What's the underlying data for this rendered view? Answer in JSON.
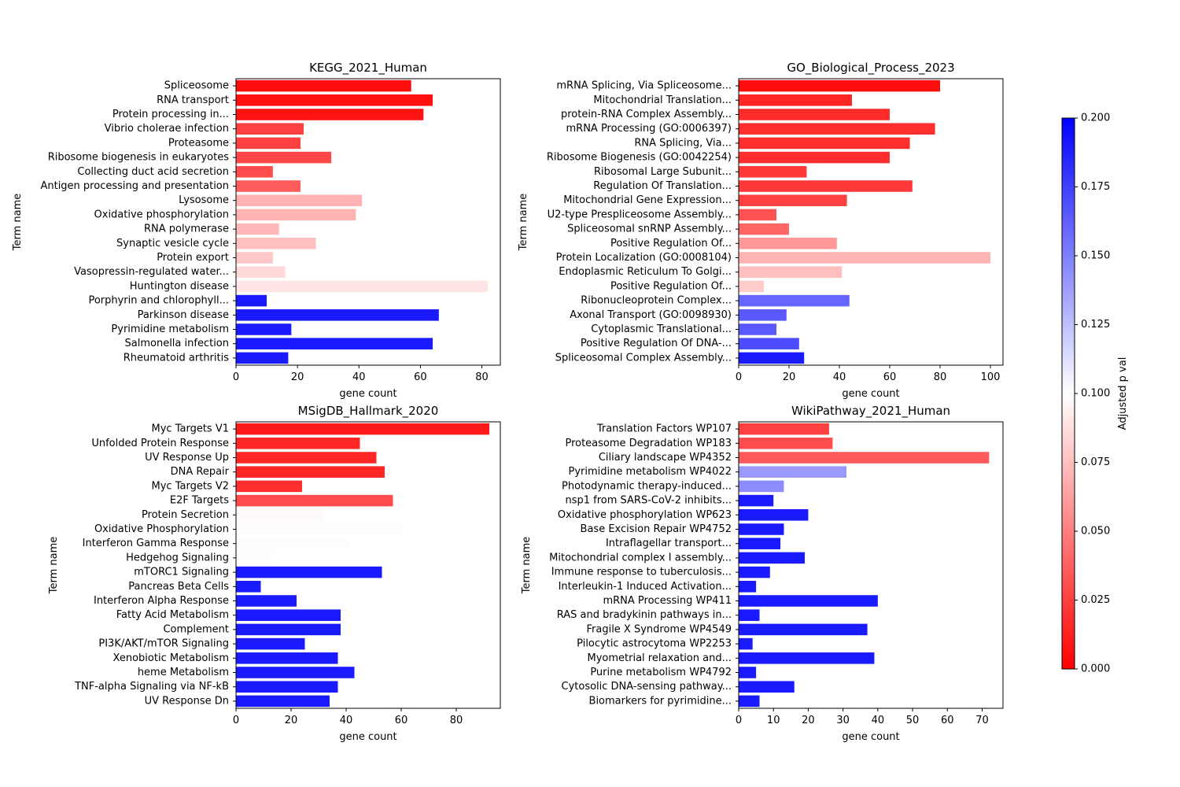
{
  "colorbar": {
    "label": "Adjusted p val",
    "min": 0,
    "max": 0.2,
    "ticks": [
      "0.000",
      "0.025",
      "0.050",
      "0.075",
      "0.100",
      "0.125",
      "0.150",
      "0.175",
      "0.200"
    ],
    "colors": {
      "low": "#ff0000",
      "mid": "#ffffff",
      "high": "#0000ff"
    }
  },
  "chart_data": [
    {
      "type": "bar",
      "orientation": "horizontal",
      "title": "KEGG_2021_Human",
      "xlabel": "gene count",
      "ylabel": "Term name",
      "xlim": [
        0,
        86
      ],
      "xticks": [
        0,
        20,
        40,
        60,
        80
      ],
      "categories": [
        "Spliceosome",
        "RNA transport",
        "Protein processing in...",
        "Vibrio cholerae infection",
        "Proteasome",
        "Ribosome biogenesis in eukaryotes",
        "Collecting duct acid secretion",
        "Antigen processing and presentation",
        "Lysosome",
        "Oxidative phosphorylation",
        "RNA polymerase",
        "Synaptic vesicle cycle",
        "Protein export",
        "Vasopressin-regulated water...",
        "Huntington disease",
        "Porphyrin and chlorophyll...",
        "Parkinson disease",
        "Pyrimidine metabolism",
        "Salmonella infection",
        "Rheumatoid arthritis"
      ],
      "values": [
        57,
        64,
        61,
        22,
        21,
        31,
        12,
        21,
        41,
        39,
        14,
        26,
        12,
        16,
        82,
        10,
        66,
        18,
        64,
        17
      ],
      "pvals": [
        0.005,
        0.006,
        0.007,
        0.025,
        0.025,
        0.028,
        0.03,
        0.036,
        0.07,
        0.07,
        0.072,
        0.075,
        0.078,
        0.085,
        0.09,
        0.19,
        0.19,
        0.19,
        0.19,
        0.19
      ]
    },
    {
      "type": "bar",
      "orientation": "horizontal",
      "title": "GO_Biological_Process_2023",
      "xlabel": "gene count",
      "ylabel": "Term name",
      "xlim": [
        0,
        105
      ],
      "xticks": [
        0,
        20,
        40,
        60,
        80,
        100
      ],
      "categories": [
        "mRNA Splicing, Via Spliceosome...",
        "Mitochondrial Translation...",
        "protein-RNA Complex Assembly...",
        "mRNA Processing (GO:0006397)",
        "RNA Splicing, Via...",
        "Ribosome Biogenesis (GO:0042254)",
        "Ribosomal Large Subunit...",
        "Regulation Of Translation...",
        "Mitochondrial Gene Expression...",
        "U2-type Prespliceosome Assembly...",
        "Spliceosomal snRNP Assembly...",
        "Positive Regulation Of...",
        "Protein Localization (GO:0008104)",
        "Endoplasmic Reticulum To Golgi...",
        "Positive Regulation Of...",
        "Ribonucleoprotein Complex...",
        "Axonal Transport (GO:0098930)",
        "Cytoplasmic Translational...",
        "Positive Regulation Of DNA-...",
        "Spliceosomal Complex Assembly..."
      ],
      "values": [
        80,
        45,
        60,
        78,
        68,
        60,
        27,
        69,
        43,
        15,
        20,
        39,
        100,
        41,
        10,
        44,
        19,
        15,
        24,
        26
      ],
      "pvals": [
        0.005,
        0.015,
        0.017,
        0.018,
        0.018,
        0.018,
        0.022,
        0.022,
        0.025,
        0.032,
        0.04,
        0.06,
        0.07,
        0.075,
        0.08,
        0.16,
        0.165,
        0.165,
        0.17,
        0.19
      ]
    },
    {
      "type": "bar",
      "orientation": "horizontal",
      "title": "MSigDB_Hallmark_2020",
      "xlabel": "gene count",
      "ylabel": "Term name",
      "xlim": [
        0,
        96
      ],
      "xticks": [
        0,
        20,
        40,
        60,
        80
      ],
      "categories": [
        "Myc Targets V1",
        "Unfolded Protein Response",
        "UV Response Up",
        "DNA Repair",
        "Myc Targets V2",
        "E2F Targets",
        "Protein Secretion",
        "Oxidative Phosphorylation",
        "Interferon Gamma Response",
        "Hedgehog Signaling",
        "mTORC1 Signaling",
        "Pancreas Beta Cells",
        "Interferon Alpha Response",
        "Fatty Acid Metabolism",
        "Complement",
        "PI3K/AKT/mTOR Signaling",
        "Xenobiotic Metabolism",
        "heme Metabolism",
        "TNF-alpha Signaling via NF-kB",
        "UV Response Dn"
      ],
      "values": [
        92,
        45,
        51,
        54,
        24,
        57,
        32,
        61,
        41,
        13,
        53,
        9,
        22,
        38,
        38,
        25,
        37,
        43,
        37,
        34
      ],
      "pvals": [
        0.01,
        0.015,
        0.015,
        0.015,
        0.018,
        0.03,
        0.098,
        0.099,
        0.099,
        0.099,
        0.19,
        0.19,
        0.19,
        0.19,
        0.19,
        0.19,
        0.19,
        0.19,
        0.19,
        0.19
      ]
    },
    {
      "type": "bar",
      "orientation": "horizontal",
      "title": "WikiPathway_2021_Human",
      "xlabel": "gene count",
      "ylabel": "Term name",
      "xlim": [
        0,
        76
      ],
      "xticks": [
        0,
        10,
        20,
        30,
        40,
        50,
        60,
        70
      ],
      "categories": [
        "Translation Factors WP107",
        "Proteasome Degradation WP183",
        "Ciliary landscape WP4352",
        "Pyrimidine metabolism WP4022",
        "Photodynamic therapy-induced...",
        "nsp1 from SARS-CoV-2 inhibits...",
        "Oxidative phosphorylation WP623",
        "Base Excision Repair WP4752",
        "Intraflagellar transport...",
        "Mitochondrial complex I assembly...",
        "Immune response to tuberculosis...",
        "Interleukin-1 Induced Activation...",
        "mRNA Processing WP411",
        "RAS and bradykinin pathways in...",
        "Fragile X Syndrome WP4549",
        "Pilocytic astrocytoma WP2253",
        "Myometrial relaxation and...",
        "Purine metabolism WP4792",
        "Cytosolic DNA-sensing pathway...",
        "Biomarkers for pyrimidine..."
      ],
      "values": [
        26,
        27,
        72,
        31,
        13,
        10,
        20,
        13,
        12,
        19,
        9,
        5,
        40,
        6,
        37,
        4,
        39,
        5,
        16,
        6
      ],
      "pvals": [
        0.025,
        0.03,
        0.035,
        0.14,
        0.145,
        0.19,
        0.19,
        0.19,
        0.19,
        0.19,
        0.19,
        0.19,
        0.19,
        0.19,
        0.19,
        0.19,
        0.19,
        0.19,
        0.19,
        0.19
      ]
    }
  ]
}
